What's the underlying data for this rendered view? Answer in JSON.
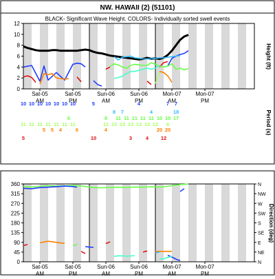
{
  "title": "NW. HAWAII (2) (51101)",
  "chart_data": [
    {
      "type": "line",
      "title": "BLACK- Significant Wave Height.  COLORS- Individually sorted swell events",
      "ylabel": "Height (ft)",
      "ylim": [
        0,
        12
      ],
      "ytick_labels": [
        "0",
        "2",
        "4",
        "6",
        "8",
        "10",
        "12"
      ],
      "x_tick_labels": [
        {
          "day": "Sat-05",
          "half": "AM"
        },
        {
          "day": "Sat-05",
          "half": "PM"
        },
        {
          "day": "Sun-06",
          "half": "AM"
        },
        {
          "day": "Sun-06",
          "half": "PM"
        },
        {
          "day": "Mon-07",
          "half": "AM"
        },
        {
          "day": "Mon-07",
          "half": "PM"
        }
      ],
      "grid": "alternating grey 6-hour bands",
      "series": [
        {
          "color": "#000000",
          "x": [
            0,
            1,
            2,
            3,
            4,
            5,
            6,
            7,
            8,
            9,
            10,
            11,
            12,
            13,
            14,
            15,
            16,
            17,
            18,
            19,
            20,
            21,
            22,
            23,
            24,
            25,
            26,
            27,
            28,
            29,
            30,
            31,
            32,
            33,
            34,
            35,
            36,
            37,
            38,
            39,
            40
          ],
          "y": [
            7.8,
            7.5,
            7.3,
            7.1,
            7.0,
            7.0,
            7.0,
            7.1,
            7.1,
            7.0,
            7.0,
            7.0,
            7.0,
            7.0,
            7.1,
            7.2,
            7.1,
            6.8,
            6.6,
            6.5,
            6.3,
            6.1,
            6.0,
            5.9,
            5.8,
            5.7,
            5.6,
            5.5,
            5.4,
            5.5,
            5.7,
            5.5,
            5.6,
            5.5,
            5.7,
            6.2,
            7.0,
            8.0,
            9.0,
            9.6,
            9.9
          ]
        },
        {
          "color": "#1e3cff",
          "x": [
            0,
            2,
            4,
            5,
            6,
            8,
            10,
            12,
            13,
            14,
            15
          ],
          "y": [
            4.0,
            4.3,
            1.4,
            4.2,
            1.6,
            3.0,
            1.6,
            4.5,
            4.7,
            4.6,
            4.0
          ]
        },
        {
          "color": "#1e3cff",
          "x": [
            17,
            18,
            19
          ],
          "y": [
            1.5,
            0.8,
            0.5
          ]
        },
        {
          "color": "#1e3cff",
          "x": [
            35,
            36,
            37,
            38,
            39,
            40
          ],
          "y": [
            4.2,
            5.6,
            6.0,
            6.3,
            6.5,
            7.0
          ]
        },
        {
          "color": "#e01010",
          "x": [
            0,
            1,
            2,
            3
          ],
          "y": [
            2.2,
            2.4,
            2.1,
            1.2
          ]
        },
        {
          "color": "#e01010",
          "x": [
            13,
            14
          ],
          "y": [
            2.2,
            1.3
          ]
        },
        {
          "color": "#e01010",
          "x": [
            20,
            21
          ],
          "y": [
            3.6,
            4.0
          ]
        },
        {
          "color": "#e01010",
          "x": [
            30,
            31
          ],
          "y": [
            1.4,
            0.8
          ]
        },
        {
          "color": "#e01010",
          "x": [
            33,
            34,
            35
          ],
          "y": [
            4.0,
            4.8,
            5.0
          ]
        },
        {
          "color": "#ff7f00",
          "x": [
            4,
            5,
            6,
            7,
            8,
            9,
            10,
            11
          ],
          "y": [
            0.9,
            2.8,
            2.6,
            2.8,
            2.0,
            1.9,
            1.8,
            1.9
          ]
        },
        {
          "color": "#ff7f00",
          "x": [
            33,
            34,
            35,
            36
          ],
          "y": [
            3.2,
            3.0,
            2.4,
            1.2
          ]
        },
        {
          "color": "#66ff44",
          "x": [
            21,
            22,
            23,
            24,
            25,
            26,
            27,
            28,
            29,
            30,
            31,
            32,
            33,
            34,
            35,
            36,
            37,
            38,
            39,
            40
          ],
          "y": [
            4.1,
            4.6,
            4.4,
            4.0,
            3.8,
            4.3,
            4.5,
            4.4,
            4.3,
            4.3,
            4.8,
            4.5,
            4.2,
            4.0,
            4.2,
            4.6,
            3.6,
            3.8,
            3.5,
            3.7
          ]
        },
        {
          "color": "#44ffcc",
          "x": [
            22,
            23,
            24,
            25,
            26,
            27,
            28,
            29,
            30,
            31,
            32,
            33
          ],
          "y": [
            1.9,
            2.1,
            2.3,
            2.8,
            3.2,
            3.2,
            3.4,
            3.6,
            3.8,
            3.6,
            3.8,
            4.3
          ]
        },
        {
          "color": "#33bbff",
          "x": [
            22,
            23,
            24,
            25,
            26,
            27,
            28,
            29,
            30,
            31,
            32,
            33,
            34,
            35,
            36,
            37,
            38
          ],
          "y": [
            5.9,
            5.3,
            5.8,
            5.9,
            6.0,
            5.7,
            5.6,
            5.5,
            5.5,
            5.5,
            5.6,
            5.7,
            5.7,
            5.8,
            5.9,
            6.0,
            6.1
          ]
        },
        {
          "color": "#aaff66",
          "x": [
            32,
            33
          ],
          "y": [
            1.0,
            3.0
          ]
        }
      ]
    },
    {
      "type": "table",
      "ylabel": "Period (s)",
      "cells": [
        {
          "x": 0,
          "row": 0,
          "text": "10",
          "color": "#1e3cff"
        },
        {
          "x": 2,
          "row": 0,
          "text": "10",
          "color": "#1e3cff"
        },
        {
          "x": 4,
          "row": 0,
          "text": "10",
          "color": "#1e3cff"
        },
        {
          "x": 6,
          "row": 0,
          "text": "10",
          "color": "#1e3cff"
        },
        {
          "x": 8,
          "row": 0,
          "text": "10",
          "color": "#1e3cff"
        },
        {
          "x": 10,
          "row": 0,
          "text": "10",
          "color": "#1e3cff"
        },
        {
          "x": 12,
          "row": 0,
          "text": "10",
          "color": "#1e3cff"
        },
        {
          "x": 17,
          "row": 0,
          "text": "5",
          "color": "#1e3cff"
        },
        {
          "x": 28,
          "row": 0,
          "text": "4",
          "color": "#1e3cff"
        },
        {
          "x": 35,
          "row": 0,
          "text": "7",
          "color": "#1e3cff"
        },
        {
          "x": 37,
          "row": 0,
          "text": "7",
          "color": "#1e3cff"
        },
        {
          "x": 22,
          "row": 1,
          "text": "8",
          "color": "#33bbff"
        },
        {
          "x": 24,
          "row": 1,
          "text": "7",
          "color": "#33bbff"
        },
        {
          "x": 31,
          "row": 1,
          "text": "4",
          "color": "#33bbff"
        },
        {
          "x": 37,
          "row": 1,
          "text": "18",
          "color": "#33bbff"
        },
        {
          "x": 11,
          "row": 2,
          "text": "6",
          "color": "#66ff44"
        },
        {
          "x": 20,
          "row": 2,
          "text": "8",
          "color": "#66ff44"
        },
        {
          "x": 23,
          "row": 2,
          "text": "11",
          "color": "#66ff44"
        },
        {
          "x": 25,
          "row": 2,
          "text": "11",
          "color": "#66ff44"
        },
        {
          "x": 27,
          "row": 2,
          "text": "11",
          "color": "#66ff44"
        },
        {
          "x": 29,
          "row": 2,
          "text": "11",
          "color": "#66ff44"
        },
        {
          "x": 31,
          "row": 2,
          "text": "11",
          "color": "#66ff44"
        },
        {
          "x": 33,
          "row": 2,
          "text": "10",
          "color": "#66ff44"
        },
        {
          "x": 35,
          "row": 2,
          "text": "10",
          "color": "#66ff44"
        },
        {
          "x": 37,
          "row": 2,
          "text": "17",
          "color": "#66ff44"
        },
        {
          "x": 0,
          "row": 3,
          "text": "11",
          "color": "#aaff66"
        },
        {
          "x": 2,
          "row": 3,
          "text": "11",
          "color": "#aaff66"
        },
        {
          "x": 4,
          "row": 3,
          "text": "11",
          "color": "#aaff66"
        },
        {
          "x": 6,
          "row": 3,
          "text": "11",
          "color": "#aaff66"
        },
        {
          "x": 8,
          "row": 3,
          "text": "11",
          "color": "#aaff66"
        },
        {
          "x": 10,
          "row": 3,
          "text": "11",
          "color": "#aaff66"
        },
        {
          "x": 12,
          "row": 3,
          "text": "11",
          "color": "#aaff66"
        },
        {
          "x": 20,
          "row": 3,
          "text": "11",
          "color": "#aaff66"
        },
        {
          "x": 22,
          "row": 3,
          "text": "13",
          "color": "#aaff66"
        },
        {
          "x": 24,
          "row": 3,
          "text": "13",
          "color": "#aaff66"
        },
        {
          "x": 26,
          "row": 3,
          "text": "13",
          "color": "#aaff66"
        },
        {
          "x": 28,
          "row": 3,
          "text": "13",
          "color": "#aaff66"
        },
        {
          "x": 30,
          "row": 3,
          "text": "13",
          "color": "#aaff66"
        },
        {
          "x": 32,
          "row": 3,
          "text": "12",
          "color": "#aaff66"
        },
        {
          "x": 35,
          "row": 3,
          "text": "6",
          "color": "#aaff66"
        },
        {
          "x": 5,
          "row": 4,
          "text": "5",
          "color": "#ff7f00"
        },
        {
          "x": 7,
          "row": 4,
          "text": "5",
          "color": "#ff7f00"
        },
        {
          "x": 9,
          "row": 4,
          "text": "4",
          "color": "#ff7f00"
        },
        {
          "x": 13,
          "row": 4,
          "text": "6",
          "color": "#ff7f00"
        },
        {
          "x": 20,
          "row": 4,
          "text": "4",
          "color": "#ff7f00"
        },
        {
          "x": 33,
          "row": 4,
          "text": "20",
          "color": "#ff7f00"
        },
        {
          "x": 35,
          "row": 4,
          "text": "20",
          "color": "#ff7f00"
        },
        {
          "x": 0,
          "row": 5,
          "text": "5",
          "color": "#e01010"
        },
        {
          "x": 17,
          "row": 5,
          "text": "10",
          "color": "#e01010"
        },
        {
          "x": 26,
          "row": 5,
          "text": "3",
          "color": "#e01010"
        },
        {
          "x": 30,
          "row": 5,
          "text": "4",
          "color": "#e01010"
        },
        {
          "x": 34,
          "row": 5,
          "text": "12",
          "color": "#e01010"
        }
      ]
    },
    {
      "type": "line",
      "ylabel": "Direction (deg)",
      "ylim": [
        0,
        360
      ],
      "ytick_labels": [
        "0",
        "45",
        "90",
        "135",
        "180",
        "225",
        "270",
        "315",
        "360"
      ],
      "right_tick_labels": [
        "N",
        "NE",
        "E",
        "SE",
        "S",
        "SW",
        "W",
        "NW",
        "N"
      ],
      "x_tick_labels": [
        {
          "day": "Sat-05",
          "half": "AM"
        },
        {
          "day": "Sat-05",
          "half": "PM"
        },
        {
          "day": "Sun-06",
          "half": "AM"
        },
        {
          "day": "Sun-06",
          "half": "PM"
        },
        {
          "day": "Mon-07",
          "half": "AM"
        },
        {
          "day": "Mon-07",
          "half": "PM"
        }
      ],
      "grid": "alternating grey 6-hour bands",
      "series": [
        {
          "color": "#66ff44",
          "x": [
            0,
            2,
            4,
            6,
            8,
            10,
            12,
            14,
            16,
            17,
            19,
            21,
            23,
            25,
            27,
            29,
            31,
            33,
            35,
            37,
            38,
            39,
            40
          ],
          "y": [
            348,
            346,
            349,
            352,
            350,
            351,
            353,
            350,
            346,
            343,
            342,
            344,
            345,
            343,
            346,
            345,
            347,
            345,
            349,
            355,
            357,
            358,
            360
          ]
        },
        {
          "color": "#1e3cff",
          "x": [
            0,
            2,
            4,
            6,
            8,
            10,
            12,
            13
          ],
          "y": [
            340,
            338,
            343,
            345,
            347,
            350,
            348,
            345
          ]
        },
        {
          "color": "#1e3cff",
          "x": [
            15,
            16,
            17
          ],
          "y": [
            70,
            68,
            67
          ]
        },
        {
          "color": "#1e3cff",
          "x": [
            35,
            36,
            37,
            38
          ],
          "y": [
            30,
            22,
            12,
            5
          ]
        },
        {
          "color": "#1e3cff",
          "x": [
            38,
            39
          ],
          "y": [
            325,
            338
          ]
        },
        {
          "color": "#e01010",
          "x": [
            0,
            1
          ],
          "y": [
            75,
            80
          ]
        },
        {
          "color": "#e01010",
          "x": [
            14,
            15
          ],
          "y": [
            48,
            38
          ]
        },
        {
          "color": "#e01010",
          "x": [
            20,
            21
          ],
          "y": [
            84,
            92
          ]
        },
        {
          "color": "#e01010",
          "x": [
            29,
            30
          ],
          "y": [
            45,
            50
          ]
        },
        {
          "color": "#ff7f00",
          "x": [
            4,
            6,
            8,
            10
          ],
          "y": [
            88,
            95,
            90,
            85
          ]
        },
        {
          "color": "#ff7f00",
          "x": [
            32,
            33,
            34,
            35,
            36
          ],
          "y": [
            48,
            48,
            48,
            48,
            48
          ]
        },
        {
          "color": "#66ff44",
          "x": [
            12,
            13
          ],
          "y": [
            75,
            80
          ]
        },
        {
          "color": "#44ffcc",
          "x": [
            22,
            23,
            24,
            25,
            26,
            27
          ],
          "y": [
            25,
            28,
            27,
            26,
            27,
            28
          ]
        },
        {
          "color": "#44ffcc",
          "x": [
            33,
            34,
            35,
            36
          ],
          "y": [
            12,
            14,
            20,
            25
          ]
        },
        {
          "color": "#33bbff",
          "x": [
            32,
            33
          ],
          "y": [
            40,
            46
          ]
        }
      ]
    }
  ]
}
